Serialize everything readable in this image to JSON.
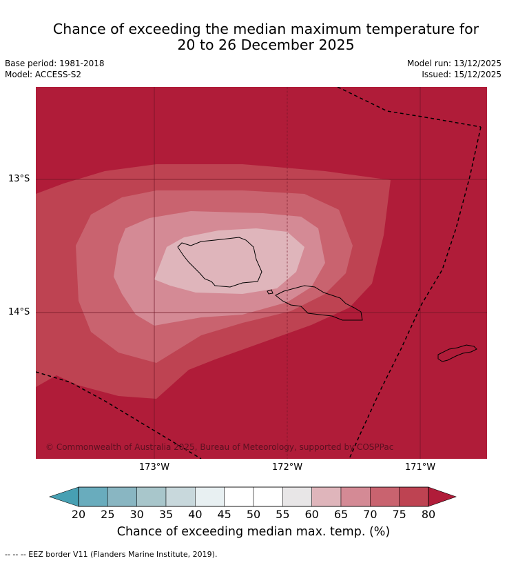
{
  "title": {
    "line1": "Chance of exceeding the median maximum temperature for",
    "line2": "20 to 26 December 2025"
  },
  "meta": {
    "base_period": "Base period: 1981-2018",
    "model": "Model: ACCESS-S2",
    "model_run": "Model run: 13/12/2025",
    "issued": "Issued: 15/12/2025"
  },
  "map": {
    "lat_labels": [
      "13°S",
      "14°S"
    ],
    "lon_labels": [
      "173°W",
      "172°W",
      "171°W"
    ],
    "copyright": "© Commonwealth of Australia 2025, Bureau of Meteorology, supported by COSPPac",
    "background_color": "#b01c39"
  },
  "colorbar": {
    "ticks": [
      "20",
      "25",
      "30",
      "35",
      "40",
      "45",
      "50",
      "55",
      "60",
      "65",
      "70",
      "75",
      "80"
    ],
    "bin_colors": [
      "#69acbd",
      "#89b6c2",
      "#a8c6cb",
      "#c8d8dc",
      "#e8f0f2",
      "#ffffff",
      "#ffffff",
      "#e8e6e7",
      "#dfb5bb",
      "#d48a95",
      "#c9636f",
      "#be4352"
    ],
    "under_color": "#47a0b3",
    "over_color": "#b01c39",
    "label": "Chance of exceeding median max. temp. (%)"
  },
  "footnote": "-- -- -- EEZ border V11 (Flanders Marine Institute, 2019)."
}
